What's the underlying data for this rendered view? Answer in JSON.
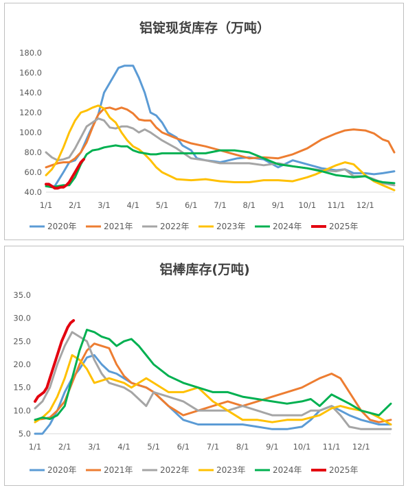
{
  "charts": [
    {
      "type": "line",
      "title": "铝锭现货库存（万吨）",
      "ylim": [
        40,
        180
      ],
      "yticks": [
        "40.0",
        "60.0",
        "80.0",
        "100.0",
        "120.0",
        "140.0",
        "160.0",
        "180.0"
      ],
      "xticks": [
        "1/1",
        "2/1",
        "3/1",
        "4/1",
        "5/1",
        "6/1",
        "7/1",
        "8/1",
        "9/1",
        "10/1",
        "11/1",
        "12/1"
      ],
      "grid": false,
      "legend": "bottom",
      "series": [
        {
          "name": "2020年",
          "color": "#5B9BD5",
          "x": [
            0,
            0.3,
            0.6,
            0.8,
            1,
            1.2,
            1.5,
            1.8,
            2,
            2.3,
            2.5,
            2.7,
            3,
            3.2,
            3.4,
            3.6,
            3.8,
            4,
            4.2,
            4.5,
            4.7,
            5,
            5.2,
            5.5,
            5.8,
            6,
            6.3,
            6.6,
            7,
            7.5,
            8,
            8.5,
            9,
            9.5,
            10,
            10.3,
            10.6,
            11,
            11.3,
            11.6,
            12
          ],
          "y": [
            46,
            46,
            60,
            70,
            72,
            80,
            100,
            118,
            140,
            155,
            165,
            167,
            167,
            155,
            140,
            120,
            117,
            110,
            100,
            95,
            87,
            82,
            74,
            72,
            71,
            70,
            72,
            74,
            75,
            73,
            65,
            72,
            68,
            64,
            62,
            63,
            59,
            59,
            58,
            59,
            61
          ]
        },
        {
          "name": "2021年",
          "color": "#ED7D31",
          "x": [
            0,
            0.2,
            0.4,
            0.6,
            0.8,
            1,
            1.2,
            1.4,
            1.6,
            1.8,
            2,
            2.2,
            2.4,
            2.6,
            2.8,
            3,
            3.2,
            3.4,
            3.6,
            3.8,
            4,
            4.5,
            5,
            5.5,
            6,
            6.5,
            7,
            7.5,
            8,
            8.5,
            9,
            9.5,
            10,
            10.3,
            10.6,
            11,
            11.3,
            11.6,
            11.8,
            12
          ],
          "y": [
            65,
            67,
            69,
            70,
            70,
            74,
            80,
            90,
            105,
            118,
            124,
            125,
            123,
            125,
            123,
            119,
            113,
            112,
            112,
            105,
            100,
            94,
            89,
            86,
            82,
            78,
            74,
            75,
            74,
            78,
            84,
            93,
            99,
            102,
            103,
            102,
            99,
            93,
            91,
            80
          ]
        },
        {
          "name": "2022年",
          "color": "#A5A5A5",
          "x": [
            0,
            0.2,
            0.4,
            0.6,
            0.8,
            1,
            1.2,
            1.4,
            1.6,
            1.8,
            2,
            2.2,
            2.4,
            2.6,
            2.8,
            3,
            3.2,
            3.4,
            3.6,
            3.8,
            4,
            4.5,
            5,
            5.5,
            6,
            6.5,
            7,
            7.5,
            8,
            8.5,
            9,
            9.5,
            10,
            10.3,
            10.6,
            11,
            11.3,
            11.6,
            12
          ],
          "y": [
            80,
            75,
            72,
            73,
            75,
            84,
            95,
            106,
            110,
            114,
            112,
            105,
            104,
            106,
            106,
            104,
            100,
            103,
            100,
            96,
            92,
            84,
            74,
            72,
            69,
            69,
            69,
            67,
            69,
            66,
            64,
            62,
            61,
            63,
            56,
            56,
            53,
            49,
            47
          ]
        },
        {
          "name": "2023年",
          "color": "#FFC000",
          "x": [
            0,
            0.2,
            0.4,
            0.6,
            0.8,
            1,
            1.2,
            1.4,
            1.6,
            1.8,
            2,
            2.2,
            2.4,
            2.6,
            2.8,
            3,
            3.2,
            3.4,
            3.6,
            3.8,
            4,
            4.5,
            5,
            5.5,
            6,
            6.5,
            7,
            7.5,
            8,
            8.5,
            9,
            9.3,
            9.6,
            10,
            10.3,
            10.6,
            11,
            11.3,
            11.6,
            12
          ],
          "y": [
            57,
            63,
            72,
            85,
            100,
            112,
            120,
            122,
            125,
            127,
            124,
            115,
            110,
            100,
            92,
            86,
            83,
            78,
            72,
            65,
            60,
            53,
            52,
            53,
            51,
            50,
            50,
            52,
            52,
            51,
            55,
            58,
            62,
            67,
            70,
            68,
            57,
            51,
            47,
            42
          ]
        },
        {
          "name": "2024年",
          "color": "#00B050",
          "x": [
            0,
            0.2,
            0.4,
            0.6,
            0.8,
            1,
            1.2,
            1.4,
            1.6,
            1.8,
            2,
            2.2,
            2.4,
            2.6,
            2.8,
            3,
            3.2,
            3.4,
            3.6,
            3.8,
            4,
            4.5,
            5,
            5.5,
            6,
            6.5,
            7,
            7.5,
            8,
            8.5,
            9,
            9.5,
            10,
            10.3,
            10.6,
            11,
            11.3,
            11.6,
            12
          ],
          "y": [
            46,
            45,
            46,
            47,
            47,
            55,
            68,
            78,
            82,
            83,
            85,
            86,
            87,
            86,
            86,
            82,
            80,
            79,
            78,
            78,
            79,
            79,
            79,
            79,
            82,
            82,
            80,
            74,
            68,
            66,
            64,
            61,
            57,
            56,
            55,
            56,
            52,
            50,
            49
          ]
        },
        {
          "name": "2025年",
          "color": "#E3000F",
          "x": [
            0,
            0.1,
            0.2,
            0.3,
            0.4,
            0.5,
            0.6,
            0.7,
            0.8,
            0.9,
            1,
            1.1,
            1.2,
            1.3
          ],
          "y": [
            48,
            48,
            46,
            44,
            44,
            45,
            45,
            47,
            50,
            55,
            60,
            65,
            70,
            73
          ]
        }
      ]
    },
    {
      "type": "line",
      "title": "铝棒库存(万吨)",
      "ylim": [
        5,
        35
      ],
      "yticks": [
        "5.0",
        "10.0",
        "15.0",
        "20.0",
        "25.0",
        "30.0",
        "35.0"
      ],
      "xticks": [
        "1/1",
        "2/1",
        "3/1",
        "4/1",
        "5/1",
        "6/1",
        "7/1",
        "8/1",
        "9/1",
        "10/1",
        "11/1",
        "12/1"
      ],
      "grid": false,
      "legend": "bottom",
      "series": [
        {
          "name": "2020年",
          "color": "#5B9BD5",
          "x": [
            0,
            0.25,
            0.5,
            0.75,
            1,
            1.25,
            1.5,
            1.75,
            2,
            2.25,
            2.5,
            2.75,
            3,
            3.25,
            3.5,
            3.75,
            4,
            4.5,
            5,
            5.5,
            6,
            6.5,
            7,
            7.5,
            8,
            8.5,
            9,
            9.3,
            9.6,
            10,
            10.3,
            10.6,
            11,
            11.3,
            11.6,
            12
          ],
          "y": [
            5,
            5,
            7,
            10,
            14,
            17,
            19,
            21.5,
            22,
            20,
            18.5,
            18,
            17,
            16,
            15.5,
            15,
            14,
            11,
            8,
            7,
            7,
            7,
            7,
            6.5,
            6,
            6,
            6.5,
            8,
            10,
            11,
            10,
            9,
            8,
            7.5,
            7,
            7
          ]
        },
        {
          "name": "2021年",
          "color": "#ED7D31",
          "x": [
            0,
            0.25,
            0.5,
            0.75,
            1,
            1.25,
            1.5,
            1.75,
            2,
            2.25,
            2.5,
            2.75,
            3,
            3.25,
            3.5,
            3.75,
            4,
            4.5,
            5,
            5.5,
            6,
            6.5,
            7,
            7.5,
            8,
            8.5,
            9,
            9.3,
            9.6,
            10,
            10.3,
            10.6,
            11,
            11.3,
            11.6,
            12
          ],
          "y": [
            8,
            8.2,
            8.5,
            10,
            12,
            16,
            20,
            23,
            24.5,
            24,
            23.5,
            20,
            17.5,
            16,
            15.5,
            15,
            14,
            11,
            9,
            10,
            11,
            12,
            11,
            12,
            13,
            14,
            15,
            16,
            17,
            18,
            17,
            14,
            10,
            8,
            7.5,
            8
          ]
        },
        {
          "name": "2022年",
          "color": "#A5A5A5",
          "x": [
            0,
            0.25,
            0.5,
            0.75,
            1,
            1.25,
            1.5,
            1.75,
            2,
            2.25,
            2.5,
            2.75,
            3,
            3.25,
            3.5,
            3.75,
            4,
            4.5,
            5,
            5.5,
            6,
            6.5,
            7,
            7.5,
            8,
            8.5,
            9,
            9.3,
            9.6,
            10,
            10.3,
            10.6,
            11,
            11.3,
            11.6,
            12
          ],
          "y": [
            10.5,
            12,
            15,
            20,
            24,
            27,
            26,
            25,
            21,
            18,
            16,
            15.5,
            15,
            14,
            12.5,
            11,
            14,
            13,
            12,
            10,
            10,
            10,
            11,
            10,
            9,
            9,
            9,
            10,
            10,
            11,
            9,
            6.5,
            6,
            6,
            6,
            6
          ]
        },
        {
          "name": "2023年",
          "color": "#FFC000",
          "x": [
            0,
            0.25,
            0.5,
            0.75,
            1,
            1.25,
            1.5,
            1.75,
            2,
            2.25,
            2.5,
            2.75,
            3,
            3.25,
            3.5,
            3.75,
            4,
            4.5,
            5,
            5.5,
            6,
            6.5,
            7,
            7.5,
            8,
            8.5,
            9,
            9.3,
            9.6,
            10,
            10.3,
            10.6,
            11,
            11.3,
            11.6,
            12
          ],
          "y": [
            7.5,
            8.5,
            10,
            13,
            17,
            22,
            21,
            19,
            16,
            16.5,
            17,
            16.5,
            16,
            15,
            16,
            17,
            16,
            14,
            14,
            15,
            12,
            10,
            8,
            8,
            7.5,
            8,
            8,
            8.5,
            9,
            10.5,
            11,
            10.5,
            10,
            9.5,
            8.5,
            7
          ]
        },
        {
          "name": "2024年",
          "color": "#00B050",
          "x": [
            0,
            0.25,
            0.5,
            0.75,
            1,
            1.25,
            1.5,
            1.75,
            2,
            2.25,
            2.5,
            2.75,
            3,
            3.25,
            3.5,
            3.75,
            4,
            4.5,
            5,
            5.5,
            6,
            6.5,
            7,
            7.5,
            8,
            8.5,
            9,
            9.3,
            9.6,
            10,
            10.3,
            10.6,
            11,
            11.3,
            11.6,
            12
          ],
          "y": [
            8,
            8.5,
            8.2,
            9,
            11,
            17,
            23,
            27.5,
            27,
            26,
            25.5,
            24,
            25,
            25.5,
            24,
            22,
            20,
            17.5,
            16,
            15,
            14,
            14,
            13,
            12.5,
            12,
            11.5,
            12,
            12.5,
            11,
            13.5,
            12.5,
            11.5,
            10,
            9.5,
            9,
            11.5
          ]
        },
        {
          "name": "2025年",
          "color": "#E3000F",
          "x": [
            0,
            0.1,
            0.2,
            0.3,
            0.4,
            0.5,
            0.6,
            0.7,
            0.8,
            0.9,
            1,
            1.1,
            1.2,
            1.3
          ],
          "y": [
            12,
            13,
            13.5,
            14,
            15,
            17,
            19,
            21,
            23,
            25,
            26.5,
            28,
            29,
            29.5
          ]
        }
      ]
    }
  ]
}
